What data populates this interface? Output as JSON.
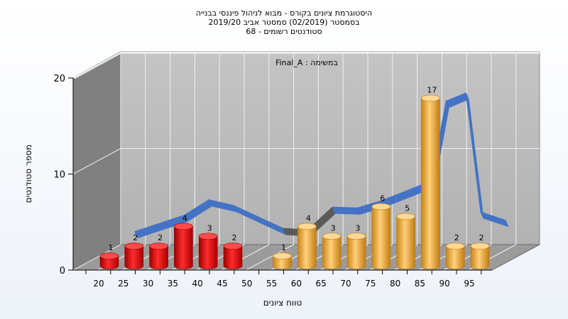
{
  "chart_data": {
    "type": "bar",
    "title_lines": [
      "היסטוגרמת ציונים בקורס - מבוא לניהול פיננסי בבנייה",
      "בסמסטר  (02/2019)  סמסטר אביב 2019/20",
      "סטודנטים רשומים - 68"
    ],
    "annotation": "במשימה : Final_A",
    "xlabel": "טווח ציונים",
    "ylabel": "מספר סטודנטים",
    "categories": [
      "20",
      "25",
      "30",
      "35",
      "40",
      "45",
      "50",
      "55",
      "60",
      "65",
      "70",
      "75",
      "80",
      "85",
      "90",
      "95"
    ],
    "values": [
      1,
      2,
      2,
      4,
      3,
      2,
      0,
      1,
      4,
      3,
      3,
      6,
      5,
      17,
      2,
      2
    ],
    "data_labels": [
      "1",
      "2",
      "2",
      "4",
      "3",
      "2",
      "",
      "1",
      "4",
      "3",
      "3",
      "6",
      "5",
      "17",
      "2",
      "2"
    ],
    "colors_by_category": [
      "#e01010",
      "#e01010",
      "#e01010",
      "#e01010",
      "#e01010",
      "#e01010",
      "#e01010",
      "#f2b248",
      "#f2b248",
      "#f2b248",
      "#f2b248",
      "#f2b248",
      "#f2b248",
      "#f2b248",
      "#f2b248",
      "#f2b248"
    ],
    "curve": {
      "points": [
        [
          25,
          1.6
        ],
        [
          30,
          2.6
        ],
        [
          35,
          3.6
        ],
        [
          40,
          5.5
        ],
        [
          45,
          4.8
        ],
        [
          50,
          3.4
        ],
        [
          55,
          2.0
        ],
        [
          60,
          1.8
        ],
        [
          65,
          4.6
        ],
        [
          70,
          4.5
        ],
        [
          75,
          5.4
        ],
        [
          80,
          6.6
        ],
        [
          85,
          7.8
        ],
        [
          88,
          17.6
        ],
        [
          92,
          18.6
        ],
        [
          95,
          4.0
        ],
        [
          100,
          3.0
        ]
      ],
      "colors": [
        "#4472c4",
        "#4472c4",
        "#4472c4",
        "#4472c4",
        "#4472c4",
        "#4472c4",
        "#5a5a5a",
        "#5a5a5a",
        "#4472c4",
        "#4472c4",
        "#4472c4",
        "#4472c4",
        "#4472c4",
        "#4472c4",
        "#4472c4",
        "#4472c4"
      ]
    },
    "yticks": [
      "0",
      "10",
      "20"
    ],
    "ylim": [
      0,
      20
    ],
    "grid": true,
    "colors": {
      "back_wall": "#bdbdbd",
      "side_wall": "#7f7f7f",
      "floor": "#9a9a9a",
      "grid": "#f0f0f0",
      "red_bar": "#e01010",
      "orange_bar": "#f2b248",
      "curve_blue": "#4472c4",
      "curve_gray": "#5a5a5a"
    }
  }
}
